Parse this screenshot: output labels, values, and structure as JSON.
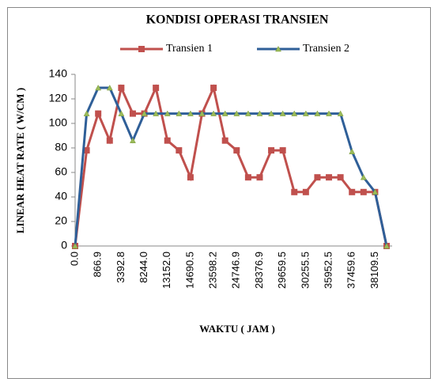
{
  "chart_data": {
    "type": "line",
    "title": "KONDISI  OPERASI  TRANSIEN",
    "x_label": "WAKTU  ( JAM )",
    "y_label": "LINEAR  HEAT  RATE  ( W/CM )",
    "categories": [
      "0.0",
      null,
      "866.9",
      null,
      "3392.8",
      null,
      "8244.0",
      null,
      "13152.0",
      null,
      "14690.5",
      null,
      "23598.2",
      null,
      "24746.9",
      null,
      "28376.9",
      null,
      "29659.5",
      null,
      "30255.5",
      null,
      "35952.5",
      null,
      "37459.6",
      null,
      "38109.5",
      null
    ],
    "series": [
      {
        "name": "Transien 1",
        "color": "#c0504d",
        "marker": "square",
        "marker_color": "#c0504d",
        "values": [
          0,
          78,
          108,
          86,
          129,
          108,
          108,
          129,
          86,
          78,
          56,
          108,
          129,
          86,
          78,
          56,
          56,
          78,
          78,
          44,
          44,
          56,
          56,
          56,
          44,
          44,
          44,
          0
        ]
      },
      {
        "name": "Transien 2",
        "color": "#2f5f98",
        "marker": "triangle",
        "marker_color": "#9bbb59",
        "values": [
          0,
          108,
          129,
          129,
          108,
          86,
          108,
          108,
          108,
          108,
          108,
          108,
          108,
          108,
          108,
          108,
          108,
          108,
          108,
          108,
          108,
          108,
          108,
          108,
          77,
          56,
          44,
          0
        ]
      }
    ],
    "ylim": [
      0,
      140
    ],
    "yticks": [
      0,
      20,
      40,
      60,
      80,
      100,
      120,
      140
    ],
    "legend": "top",
    "grid": false
  }
}
